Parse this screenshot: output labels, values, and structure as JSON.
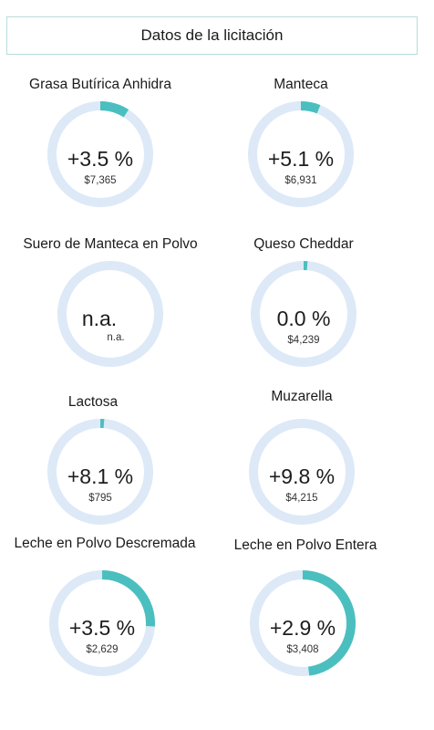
{
  "header": {
    "title": "Datos de la licitación"
  },
  "colors": {
    "track": "#dde9f7",
    "fill": "#4bbfbf"
  },
  "products": [
    {
      "name": "Grasa Butírica Anhidra",
      "change_label": "+3.5 %",
      "price": "$7,365",
      "arc_fraction": 0.09
    },
    {
      "name": "Manteca",
      "change_label": "+5.1 %",
      "price": "$6,931",
      "arc_fraction": 0.06
    },
    {
      "name": "Suero de Manteca en Polvo",
      "change_label": "n.a.",
      "price": "n.a.",
      "arc_fraction": 0
    },
    {
      "name": "Queso Cheddar",
      "change_label": "0.0 %",
      "price": "$4,239",
      "arc_fraction": 0.012
    },
    {
      "name": "Lactosa",
      "change_label": "+8.1 %",
      "price": "$795",
      "arc_fraction": 0.012
    },
    {
      "name": "Muzarella",
      "change_label": "+9.8 %",
      "price": "$4,215",
      "arc_fraction": 0
    },
    {
      "name": "Leche en Polvo Descremada",
      "change_label": "+3.5 %",
      "price": "$2,629",
      "arc_fraction": 0.26
    },
    {
      "name": "Leche en Polvo Entera",
      "change_label": "+2.9 %",
      "price": "$3,408",
      "arc_fraction": 0.48
    }
  ]
}
